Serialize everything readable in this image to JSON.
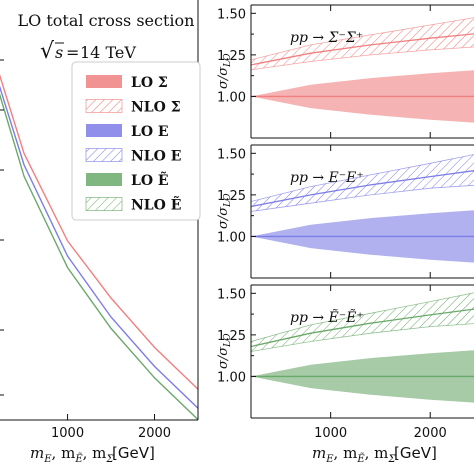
{
  "chart_data": [
    {
      "type": "line",
      "title": "LO total cross section",
      "subtitle": "√s = 14 TeV",
      "xlabel": "m_E, m_Ẽ, m_Σ [GeV]",
      "ylabel": "",
      "y_scale": "log",
      "xlim": [
        200,
        2500
      ],
      "xticks": [
        1000,
        2000
      ],
      "grid": false,
      "legend_position": "top-right",
      "legend": [
        "LO Σ",
        "NLO Σ",
        "LO E",
        "NLO E",
        "LO Ẽ",
        "NLO Ẽ"
      ],
      "series": [
        {
          "name": "LO Σ",
          "color": "#f08080",
          "x": [
            200,
            500,
            1000,
            1500,
            2000,
            2500
          ],
          "y_rel": [
            1.0,
            0.78,
            0.55,
            0.4,
            0.27,
            0.16
          ]
        },
        {
          "name": "LO E",
          "color": "#7d7de6",
          "x": [
            200,
            500,
            1000,
            1500,
            2000,
            2500
          ],
          "y_rel": [
            0.97,
            0.75,
            0.51,
            0.35,
            0.22,
            0.11
          ]
        },
        {
          "name": "LO Ẽ",
          "color": "#6aa96a",
          "x": [
            200,
            500,
            1000,
            1500,
            2000,
            2500
          ],
          "y_rel": [
            0.95,
            0.72,
            0.48,
            0.32,
            0.19,
            0.08
          ]
        }
      ]
    },
    {
      "type": "area",
      "title": "pp → Σ⁻Σ⁺",
      "xlabel": "",
      "ylabel": "σ/σ_LO",
      "xlim": [
        200,
        2500
      ],
      "ylim": [
        0.75,
        1.55
      ],
      "yticks": [
        1.0,
        1.25,
        1.5
      ],
      "color": "#f08080",
      "x": [
        200,
        800,
        1400,
        2000,
        2500
      ],
      "lo_band_upper": [
        1.0,
        1.07,
        1.11,
        1.14,
        1.16
      ],
      "lo_band_lower": [
        1.0,
        0.93,
        0.89,
        0.86,
        0.84
      ],
      "nlo_central": [
        1.19,
        1.26,
        1.31,
        1.35,
        1.38
      ],
      "nlo_band_upper": [
        1.22,
        1.31,
        1.37,
        1.43,
        1.48
      ],
      "nlo_band_lower": [
        1.16,
        1.21,
        1.25,
        1.28,
        1.3
      ]
    },
    {
      "type": "area",
      "title": "pp → E⁻E⁺",
      "xlabel": "",
      "ylabel": "σ/σ_LO",
      "xlim": [
        200,
        2500
      ],
      "ylim": [
        0.75,
        1.55
      ],
      "yticks": [
        1.0,
        1.25,
        1.5
      ],
      "color": "#7d7de6",
      "x": [
        200,
        800,
        1400,
        2000,
        2500
      ],
      "lo_band_upper": [
        1.0,
        1.07,
        1.11,
        1.14,
        1.16
      ],
      "lo_band_lower": [
        1.0,
        0.93,
        0.89,
        0.86,
        0.84
      ],
      "nlo_central": [
        1.18,
        1.25,
        1.31,
        1.36,
        1.4
      ],
      "nlo_band_upper": [
        1.21,
        1.3,
        1.37,
        1.44,
        1.5
      ],
      "nlo_band_lower": [
        1.15,
        1.2,
        1.25,
        1.29,
        1.31
      ]
    },
    {
      "type": "area",
      "title": "pp → Ẽ⁻Ẽ⁺",
      "xlabel": "m_E, m_Ẽ, m_Σ [GeV]",
      "ylabel": "σ/σ_LO",
      "xlim": [
        200,
        2500
      ],
      "ylim": [
        0.75,
        1.55
      ],
      "yticks": [
        1.0,
        1.25,
        1.5
      ],
      "xticks": [
        1000,
        2000
      ],
      "color": "#6aa96a",
      "x": [
        200,
        800,
        1400,
        2000,
        2500
      ],
      "lo_band_upper": [
        1.0,
        1.07,
        1.11,
        1.14,
        1.16
      ],
      "lo_band_lower": [
        1.0,
        0.93,
        0.89,
        0.86,
        0.84
      ],
      "nlo_central": [
        1.18,
        1.26,
        1.32,
        1.37,
        1.41
      ],
      "nlo_band_upper": [
        1.21,
        1.31,
        1.38,
        1.45,
        1.51
      ],
      "nlo_band_lower": [
        1.15,
        1.21,
        1.26,
        1.3,
        1.32
      ]
    }
  ],
  "labels": {
    "left_title": "LO total cross section",
    "sqrt_s": "14 TeV",
    "legend": [
      "LO Σ",
      "NLO Σ",
      "LO E",
      "NLO E",
      "LO Ẽ",
      "NLO Ẽ"
    ],
    "x_tick_left": [
      "1000",
      "2000"
    ],
    "x_tick_right": [
      "1000",
      "2000"
    ],
    "xlabel": "[GeV]",
    "ylabel": "σ/σ",
    "ylabel_sub": "LO",
    "yticks": [
      "1.50",
      "1.25",
      "1.00"
    ],
    "panel_titles": [
      "pp → Σ⁻Σ⁺",
      "pp → E⁻E⁺",
      "pp → Ẽ⁻Ẽ⁺"
    ]
  }
}
